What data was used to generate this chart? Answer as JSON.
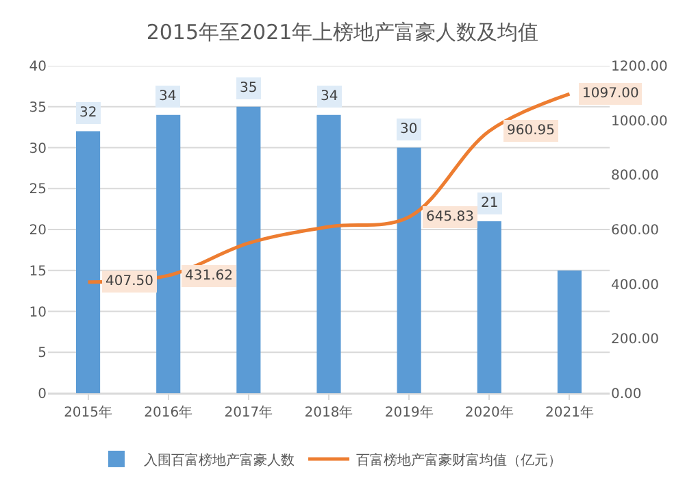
{
  "chart_data": {
    "type": "bar",
    "title": "2015年至2021年上榜地产富豪人数及均值",
    "categories": [
      "2015年",
      "2016年",
      "2017年",
      "2018年",
      "2019年",
      "2020年",
      "2021年"
    ],
    "series": [
      {
        "name": "入围百富榜地产富豪人数",
        "color": "#5b9bd5",
        "values": [
          32,
          34,
          35,
          34,
          30,
          21,
          15
        ],
        "value_labels": [
          "32",
          "34",
          "35",
          "34",
          "30",
          "21",
          null
        ]
      },
      {
        "name": "百富榜地产富豪财富均值（亿元）",
        "type": "line",
        "axis": "y2",
        "color": "#ed7d31",
        "values": [
          407.5,
          431.62,
          550,
          610,
          645.83,
          960.95,
          1097
        ],
        "value_labels": [
          "407.50",
          "431.62",
          null,
          null,
          "645.83",
          "960.95",
          "1097.00"
        ]
      }
    ],
    "ylim": [
      0,
      40
    ],
    "yticks": [
      0,
      5,
      10,
      15,
      20,
      25,
      30,
      35,
      40
    ],
    "y2lim": [
      0,
      1200
    ],
    "y2ticks": [
      {
        "value": 0,
        "label": "0.00"
      },
      {
        "value": 200,
        "label": "200.00"
      },
      {
        "value": 400,
        "label": "400.00"
      },
      {
        "value": 600,
        "label": "600.00"
      },
      {
        "value": 800,
        "label": "800.00"
      },
      {
        "value": 1000,
        "label": "1000.00"
      },
      {
        "value": 1200,
        "label": "1200.00"
      }
    ],
    "grid": "y",
    "legend": "bottom",
    "marker": "none",
    "line_style": "solid"
  }
}
